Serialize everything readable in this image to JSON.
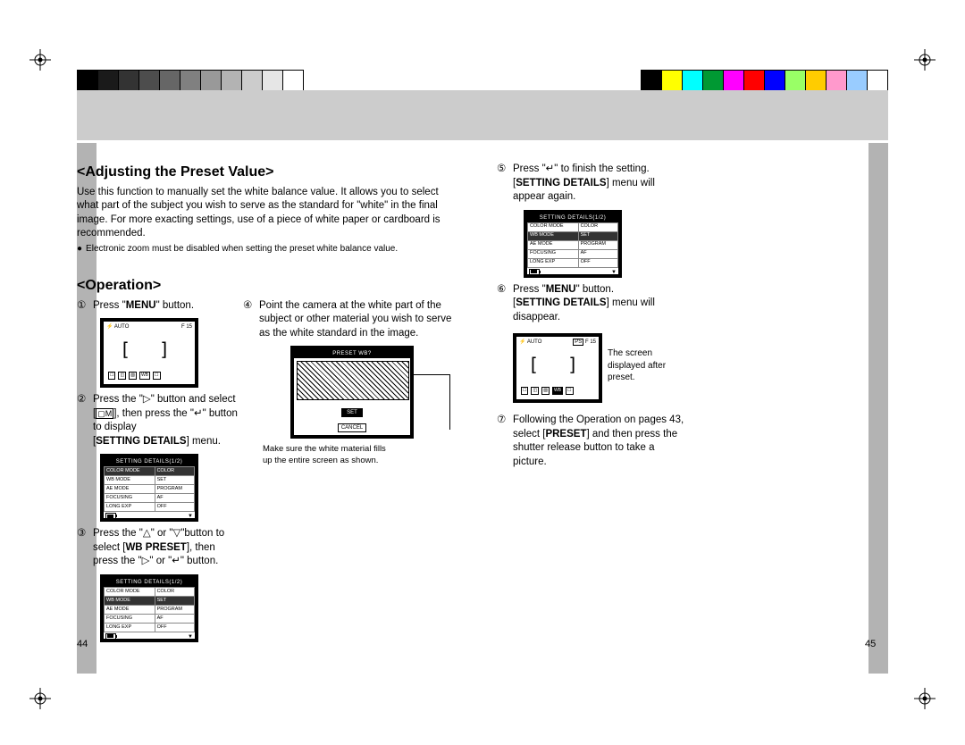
{
  "colorbar": {
    "grays": [
      "#000000",
      "#1a1a1a",
      "#333333",
      "#4d4d4d",
      "#666666",
      "#808080",
      "#999999",
      "#b3b3b3",
      "#cccccc",
      "#e6e6e6",
      "#ffffff"
    ],
    "colors": [
      "#000000",
      "#ffff00",
      "#00ffff",
      "#009933",
      "#ff00ff",
      "#ff0000",
      "#0000ff",
      "#99ff66",
      "#ffcc00",
      "#ff99cc",
      "#99ccff",
      "#ffffff"
    ]
  },
  "left_page": {
    "page_number": "44",
    "section_title": "<Adjusting the Preset Value>",
    "intro": "Use this function to manually set the white balance value. It allows you to select what part of the subject you wish to serve as the standard for \"white\" in the final image. For more exacting settings, use of a piece of white paper or cardboard is recommended.",
    "note": "Electronic zoom must be disabled when setting the preset white balance value.",
    "operation_title": "<Operation>",
    "step1": {
      "num": "①",
      "pre": "Press \"",
      "bold": "MENU",
      "post": "\" button."
    },
    "step2": {
      "num": "②",
      "line1_pre": "Press the \"▷\" button and select [",
      "line1_icon": "▢M",
      "line1_post": "], then press the",
      "line2_pre": "\"↵\" button to display",
      "line3_pre": "[",
      "line3_bold": "SETTING DETAILS",
      "line3_post": "] menu."
    },
    "step3": {
      "num": "③",
      "line1": "Press the \"△\" or \"▽\"button to",
      "line2_pre": "select [",
      "line2_bold": "WB PRESET",
      "line2_post": "], then",
      "line3": "press the \"▷\" or \"↵\" button."
    },
    "step4": {
      "num": "④",
      "text": "Point the camera at the white part of the subject or other material you wish to serve as the white standard in the image."
    },
    "caption": "Make sure the white material fills up the entire screen as shown."
  },
  "right_page": {
    "page_number": "45",
    "step5": {
      "num": "⑤",
      "line1": "Press \"↵\" to finish the setting.",
      "line2_pre": "[",
      "line2_bold": "SETTING DETAILS",
      "line2_post": "] menu will appear again."
    },
    "step6": {
      "num": "⑥",
      "line1_pre": "Press \"",
      "line1_bold": "MENU",
      "line1_post": "\" button.",
      "line2_pre": "[",
      "line2_bold": "SETTING DETAILS",
      "line2_post": "] menu will disappear."
    },
    "side_note": "The screen displayed after preset.",
    "step7": {
      "num": "⑦",
      "line1": "Following the Operation on",
      "line2_pre": "pages 43, select [",
      "line2_bold": "PRESET",
      "line2_post": "] and",
      "line3": "then press the shutter release button to take a picture."
    }
  },
  "lcd": {
    "auto_label": "AUTO",
    "f_label": "F 15",
    "menu_title": "SETTING DETAILS(1/2)",
    "preset_title": "PRESET WB?",
    "set_btn": "SET",
    "cancel_btn": "CANCEL",
    "rows": [
      {
        "k": "COLOR MODE",
        "v": "COLOR"
      },
      {
        "k": "WB MODE",
        "v": "SET"
      },
      {
        "k": "AE MODE",
        "v": "PROGRAM"
      },
      {
        "k": "FOCUSING",
        "v": "AF"
      },
      {
        "k": "LONG EXP",
        "v": "OFF"
      }
    ]
  }
}
